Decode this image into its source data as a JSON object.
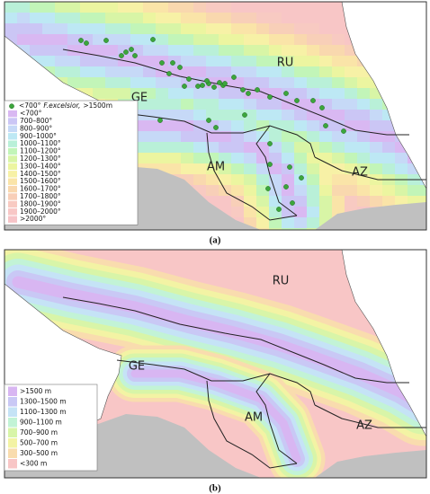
{
  "panels": [
    {
      "label": "(a)",
      "countries": [
        "RU",
        "GE",
        "AM",
        "AZ"
      ],
      "points_legend": [
        "<700°",
        "F.excelsior,",
        ">1500m"
      ],
      "legend": [
        {
          "label": "<700°",
          "color": "#d9b8f2"
        },
        {
          "label": "700–800°",
          "color": "#cbc6f5"
        },
        {
          "label": "800–900°",
          "color": "#c6d9f7"
        },
        {
          "label": "900–1000°",
          "color": "#bde8f4"
        },
        {
          "label": "1000–1100°",
          "color": "#b9f0d8"
        },
        {
          "label": "1100–1200°",
          "color": "#c2f5b8"
        },
        {
          "label": "1200–1300°",
          "color": "#d8f5a6"
        },
        {
          "label": "1300–1400°",
          "color": "#ecf5a0"
        },
        {
          "label": "1400–1500°",
          "color": "#f7f1a6"
        },
        {
          "label": "1500–1600°",
          "color": "#fae4a8"
        },
        {
          "label": "1600–1700°",
          "color": "#f9d8ae"
        },
        {
          "label": "1700–1800°",
          "color": "#f8cfb8"
        },
        {
          "label": "1800–1900°",
          "color": "#f8cac2"
        },
        {
          "label": "1900–2000°",
          "color": "#f8c7c6"
        },
        {
          "label": ">2000°",
          "color": "#f7c4c8"
        }
      ]
    },
    {
      "label": "(b)",
      "countries": [
        "RU",
        "GE",
        "AM",
        "AZ"
      ],
      "legend": [
        {
          "label": ">1500 m",
          "color": "#d8b6f2"
        },
        {
          "label": "1300–1500 m",
          "color": "#c9c8f5"
        },
        {
          "label": "1100–1300 m",
          "color": "#c5e3f6"
        },
        {
          "label": "900–1100 m",
          "color": "#c2f3d6"
        },
        {
          "label": "700–900 m",
          "color": "#d8f5a8"
        },
        {
          "label": "500–700 m",
          "color": "#f3f3a4"
        },
        {
          "label": "300–500 m",
          "color": "#f9dcae"
        },
        {
          "label": "<300 m",
          "color": "#f8c6c6"
        }
      ]
    }
  ]
}
